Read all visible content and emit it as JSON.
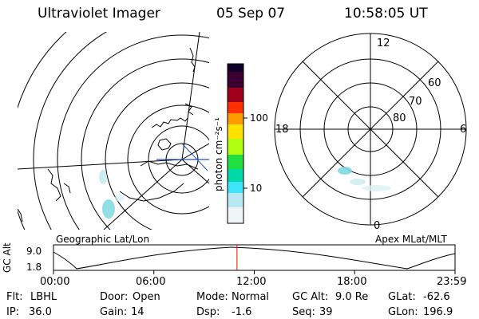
{
  "header": {
    "instrument": "Ultraviolet Imager",
    "date": "05 Sep 07",
    "time": "10:58:05 UT"
  },
  "left_map": {
    "caption": "Geographic Lat/Lon"
  },
  "colorbar": {
    "unit_label": "photon cm⁻²s⁻¹",
    "ticks": [
      "100",
      "10"
    ],
    "colors": [
      "#11002a",
      "#6a0033",
      "#c00010",
      "#ff8000",
      "#ffd000",
      "#a8ff00",
      "#00e000",
      "#00d8a0",
      "#60e0ff",
      "#c8e8ff",
      "#ffffff"
    ]
  },
  "polar_plot": {
    "caption": "Apex MLat/MLT",
    "mlt_labels": {
      "top": "12",
      "left": "18",
      "right": "6",
      "bottom": "0"
    },
    "lat_labels": [
      "60",
      "70",
      "80"
    ]
  },
  "altitude_plot": {
    "y_axis_label": "GC Alt",
    "y_ticks": [
      "9.0",
      "1.8"
    ],
    "x_ticks": [
      "00:00",
      "06:00",
      "12:00",
      "18:00",
      "23:59"
    ],
    "current_time_fraction": 0.457,
    "marker_color": "#ff0000"
  },
  "info": {
    "row1": [
      {
        "label": "Flt:",
        "value": "LBHL"
      },
      {
        "label": "Door:",
        "value": "Open"
      },
      {
        "label": "Mode:",
        "value": "Normal"
      },
      {
        "label": "GC Alt:",
        "value": "9.0 Re"
      },
      {
        "label": "GLat:",
        "value": "-62.6"
      }
    ],
    "row2": [
      {
        "label": "IP:",
        "value": "36.0"
      },
      {
        "label": "Gain:",
        "value": "14"
      },
      {
        "label": "Dsp:",
        "value": "-1.6"
      },
      {
        "label": "Seq:",
        "value": "39"
      },
      {
        "label": "GLon:",
        "value": "196.9"
      }
    ]
  },
  "accent_colors": {
    "magnetic_meridian": "#2050d0",
    "aurora": "#7fd8e0"
  }
}
